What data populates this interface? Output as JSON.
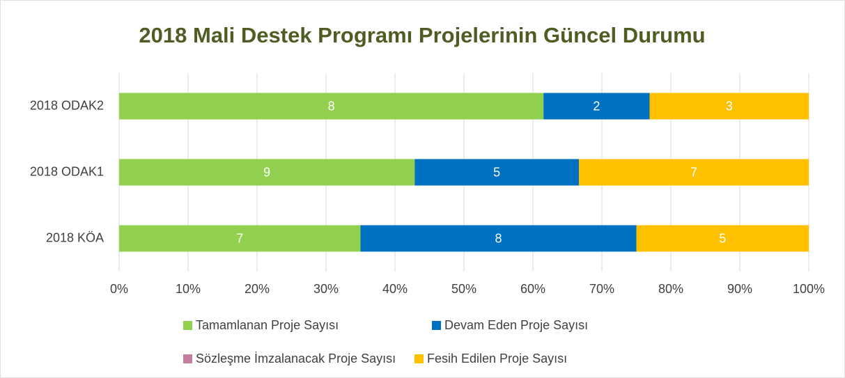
{
  "chart_data": {
    "type": "bar",
    "orientation": "horizontal",
    "stacking": "percent",
    "title": "2018 Mali Destek Programı Projelerinin Güncel Durumu",
    "categories": [
      "2018 ODAK2",
      "2018 ODAK1",
      "2018 KÖA"
    ],
    "series": [
      {
        "name": "Tamamlanan Proje Sayısı",
        "color": "#92d050",
        "values": [
          8,
          9,
          7
        ]
      },
      {
        "name": "Devam Eden Proje Sayısı",
        "color": "#0070c0",
        "values": [
          2,
          5,
          8
        ]
      },
      {
        "name": "Sözleşme İmzalanacak Proje Sayısı",
        "color": "#c47fa0",
        "values": [
          0,
          0,
          0
        ]
      },
      {
        "name": "Fesih Edilen Proje Sayısı",
        "color": "#ffc000",
        "values": [
          3,
          7,
          5
        ]
      }
    ],
    "xlim": [
      0,
      100
    ],
    "xticks": [
      {
        "value": 0,
        "label": "0%"
      },
      {
        "value": 10,
        "label": "10%"
      },
      {
        "value": 20,
        "label": "20%"
      },
      {
        "value": 30,
        "label": "30%"
      },
      {
        "value": 40,
        "label": "40%"
      },
      {
        "value": 50,
        "label": "50%"
      },
      {
        "value": 60,
        "label": "60%"
      },
      {
        "value": 70,
        "label": "70%"
      },
      {
        "value": 80,
        "label": "80%"
      },
      {
        "value": 90,
        "label": "90%"
      },
      {
        "value": 100,
        "label": "100%"
      }
    ],
    "grid": true,
    "legend": "bottom"
  }
}
